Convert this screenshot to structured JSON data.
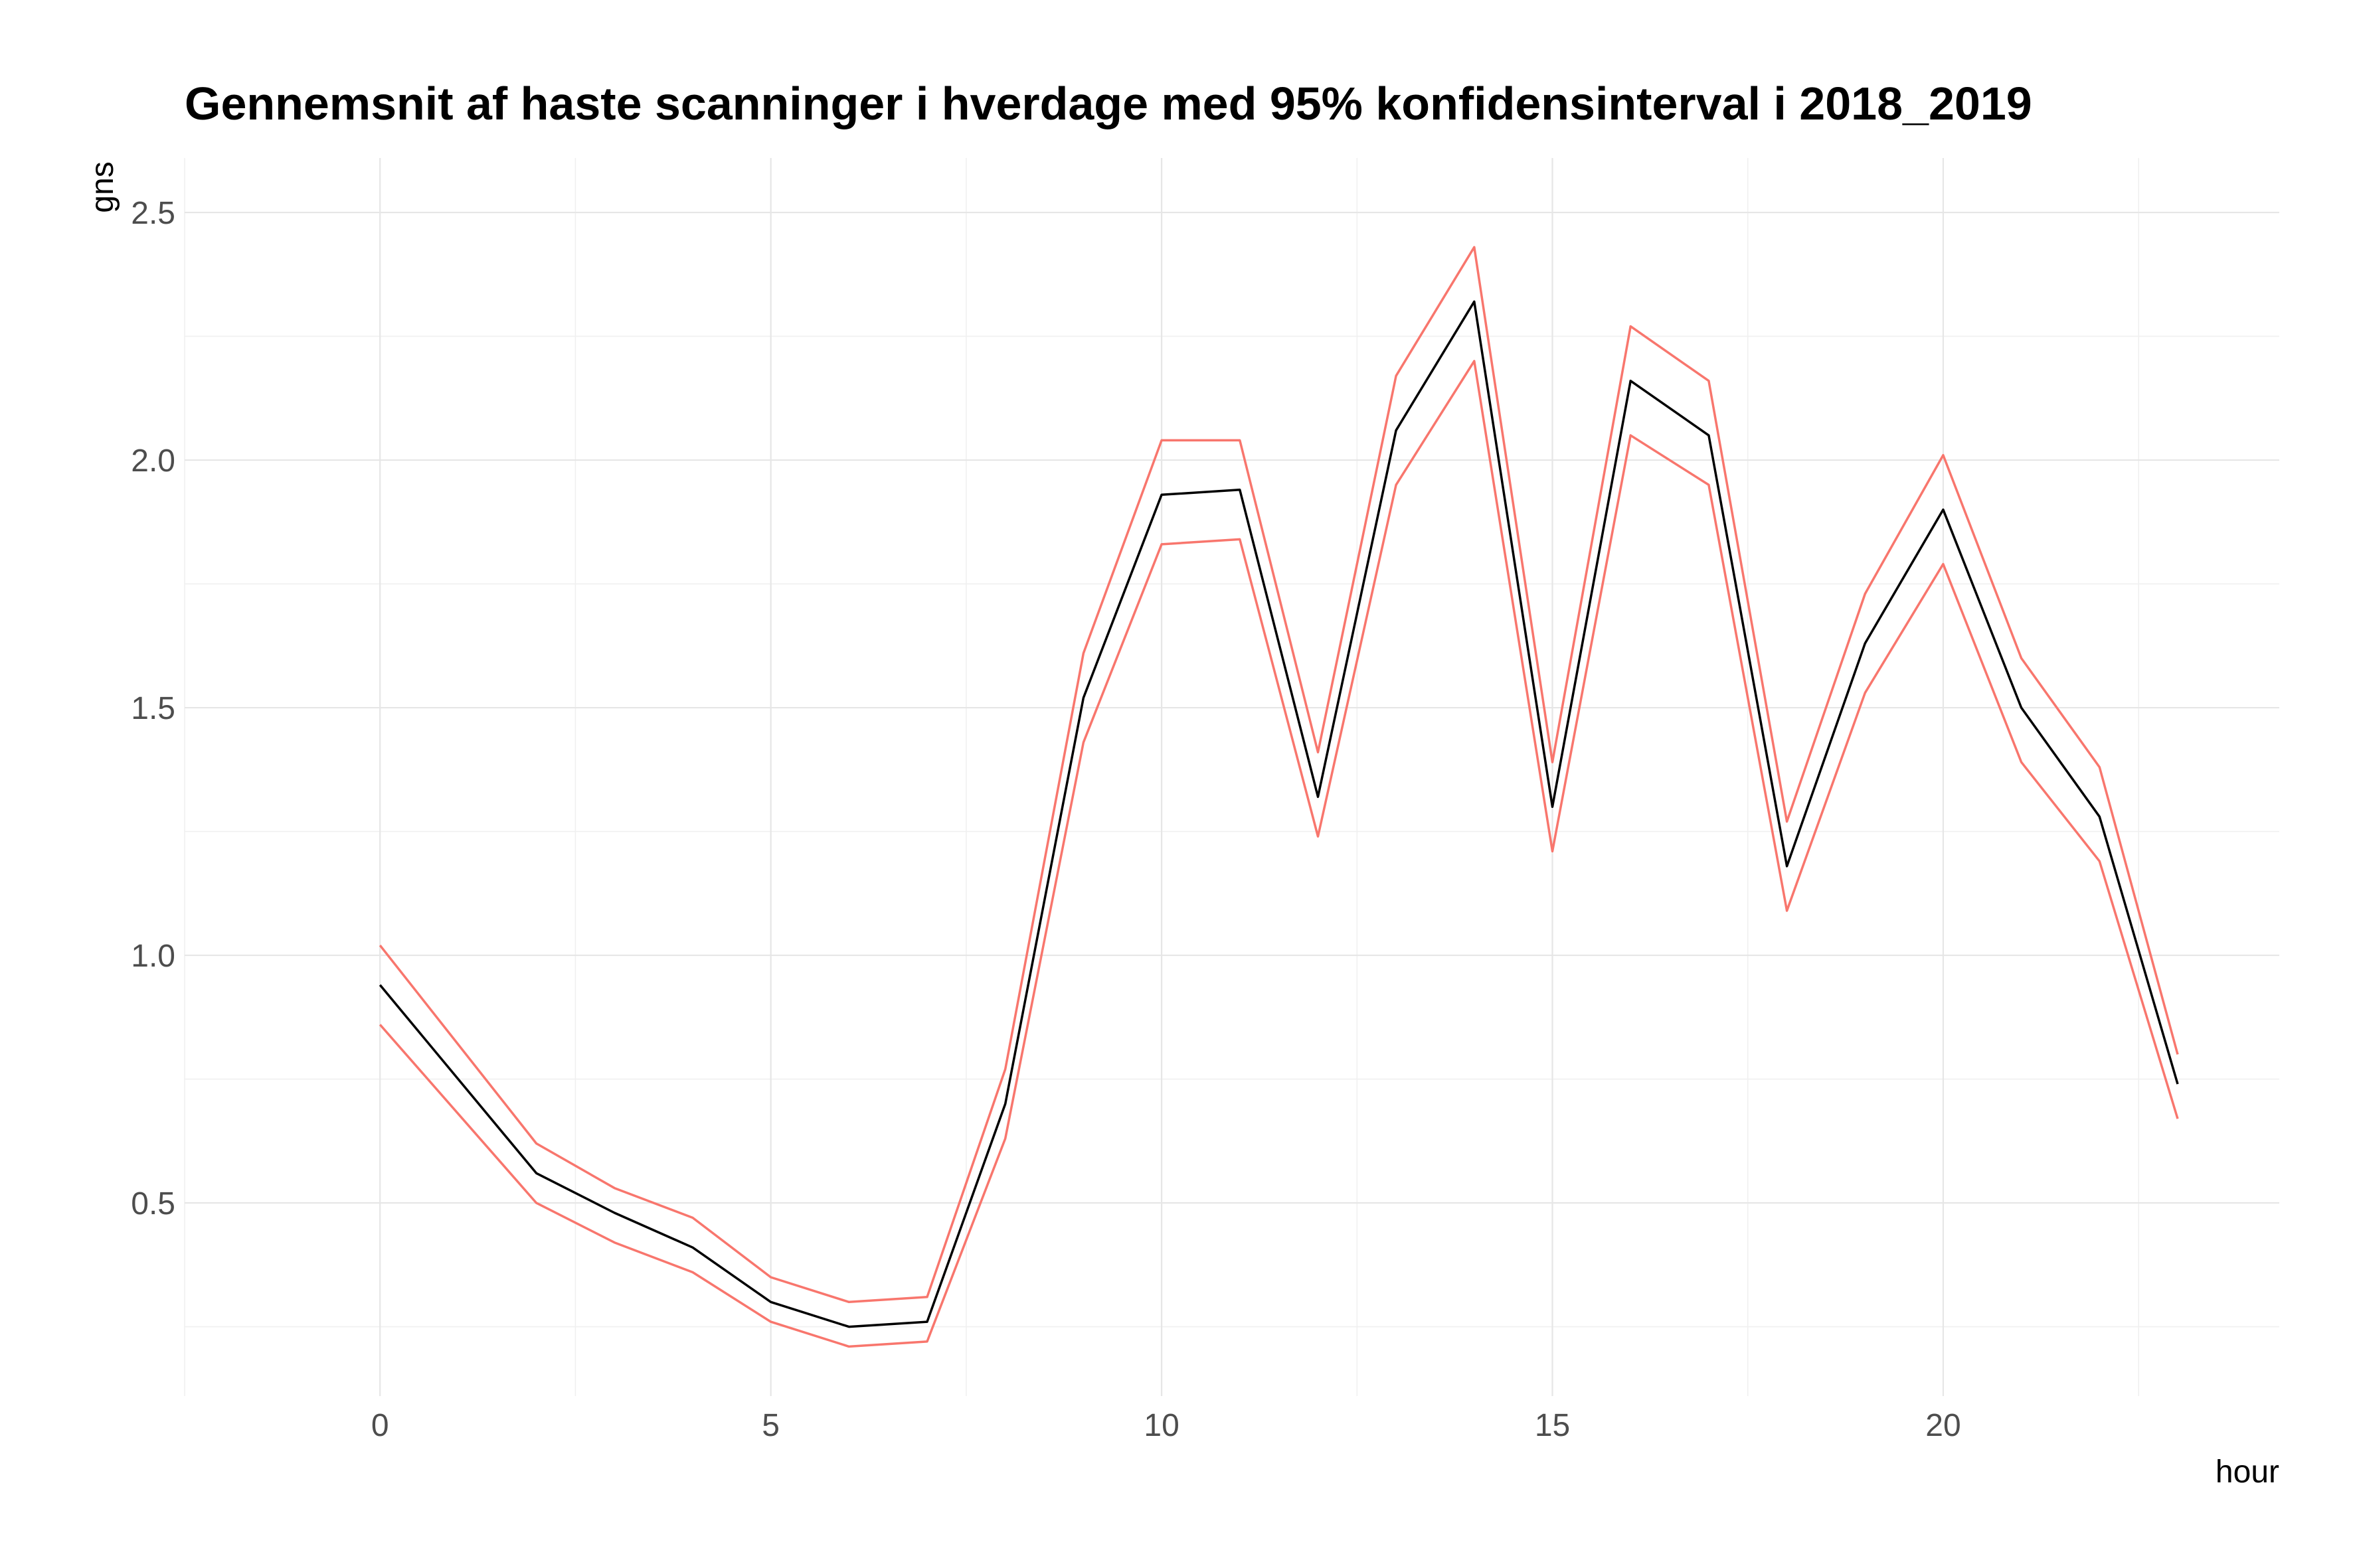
{
  "chart_data": {
    "type": "line",
    "title": "Gennemsnit af haste scanninger i hverdage med 95% konfidensinterval i 2018_2019",
    "xlabel": "hour",
    "ylabel": "gns",
    "xlim": [
      -2.5,
      24.3
    ],
    "ylim": [
      0.11,
      2.61
    ],
    "x_ticks": [
      0,
      5,
      10,
      15,
      20
    ],
    "x_tick_labels": [
      "0",
      "5",
      "10",
      "15",
      "20"
    ],
    "y_ticks": [
      0.5,
      1.0,
      1.5,
      2.0,
      2.5
    ],
    "y_tick_labels": [
      "0.5",
      "1.0",
      "1.5",
      "2.0",
      "2.5"
    ],
    "grid": true,
    "x": [
      0,
      2,
      3,
      4,
      5,
      6,
      7,
      8,
      9,
      10,
      11,
      12,
      13,
      14,
      15,
      16,
      17,
      18,
      19,
      20,
      21,
      22,
      23
    ],
    "series": [
      {
        "role": "mean",
        "color": "#000000",
        "values": [
          0.94,
          0.56,
          0.48,
          0.41,
          0.3,
          0.25,
          0.26,
          0.7,
          1.52,
          1.93,
          1.94,
          1.32,
          2.06,
          2.32,
          1.3,
          2.16,
          2.05,
          1.18,
          1.63,
          1.9,
          1.5,
          1.28,
          0.74
        ]
      },
      {
        "role": "upper",
        "color": "#f8766d",
        "values": [
          1.02,
          0.62,
          0.53,
          0.47,
          0.35,
          0.3,
          0.31,
          0.77,
          1.61,
          2.04,
          2.04,
          1.41,
          2.17,
          2.43,
          1.39,
          2.27,
          2.16,
          1.27,
          1.73,
          2.01,
          1.6,
          1.38,
          0.8
        ]
      },
      {
        "role": "lower",
        "color": "#f8766d",
        "values": [
          0.86,
          0.5,
          0.42,
          0.36,
          0.26,
          0.21,
          0.22,
          0.63,
          1.43,
          1.83,
          1.84,
          1.24,
          1.95,
          2.2,
          1.21,
          2.05,
          1.95,
          1.09,
          1.53,
          1.79,
          1.39,
          1.19,
          0.67
        ]
      }
    ]
  }
}
